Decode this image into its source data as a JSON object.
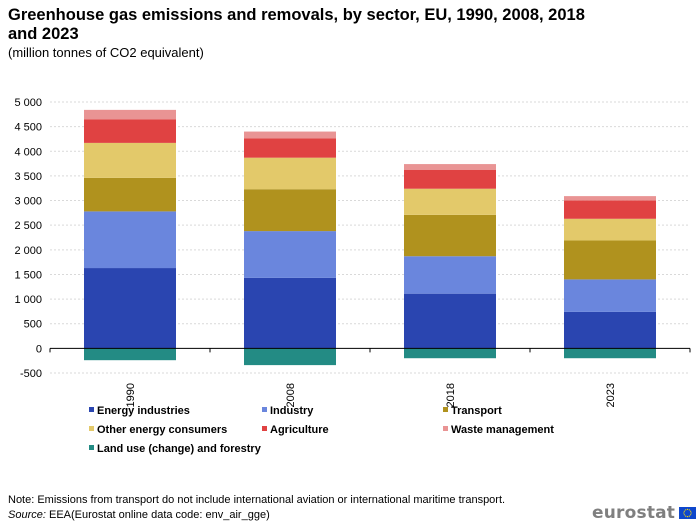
{
  "title": "Greenhouse gas emissions and removals, by sector, EU, 1990, 2008, 2018 and 2023",
  "subtitle": "(million tonnes of CO2 equivalent)",
  "note": "Note: Emissions from transport do not include international aviation or international maritime transport.",
  "source_label": "Source:",
  "source_text": " EEA(Eurostat online data code: env_air_gge)",
  "logo_text": "eurostat",
  "logo_icon": "eu-flag-icon",
  "chart_data": {
    "type": "bar",
    "stacked": true,
    "categories": [
      "1990",
      "2008",
      "2018",
      "2023"
    ],
    "ylim": [
      -500,
      5000
    ],
    "yticks": [
      -500,
      0,
      500,
      1000,
      1500,
      2000,
      2500,
      3000,
      3500,
      4000,
      4500,
      5000
    ],
    "ytick_labels": [
      "-500",
      "0",
      "500",
      "1 000",
      "1 500",
      "2 000",
      "2 500",
      "3 000",
      "3 500",
      "4 000",
      "4 500",
      "5 000"
    ],
    "grid": true,
    "legend_position": "bottom",
    "series": [
      {
        "name": "Energy industries",
        "color": "#2a45b0",
        "values": [
          1630,
          1430,
          1110,
          740
        ]
      },
      {
        "name": "Industry",
        "color": "#6a86dd",
        "values": [
          1150,
          950,
          760,
          660
        ]
      },
      {
        "name": "Transport",
        "color": "#b0921e",
        "values": [
          680,
          850,
          840,
          790
        ]
      },
      {
        "name": "Other energy consumers",
        "color": "#e3c96a",
        "values": [
          710,
          640,
          530,
          440
        ]
      },
      {
        "name": "Agriculture",
        "color": "#e04242",
        "values": [
          480,
          390,
          380,
          370
        ]
      },
      {
        "name": "Waste management",
        "color": "#e99494",
        "values": [
          190,
          140,
          120,
          90
        ]
      },
      {
        "name": "Land use (change) and forestry",
        "color": "#238b84",
        "values": [
          -240,
          -340,
          -200,
          -200
        ]
      }
    ]
  }
}
